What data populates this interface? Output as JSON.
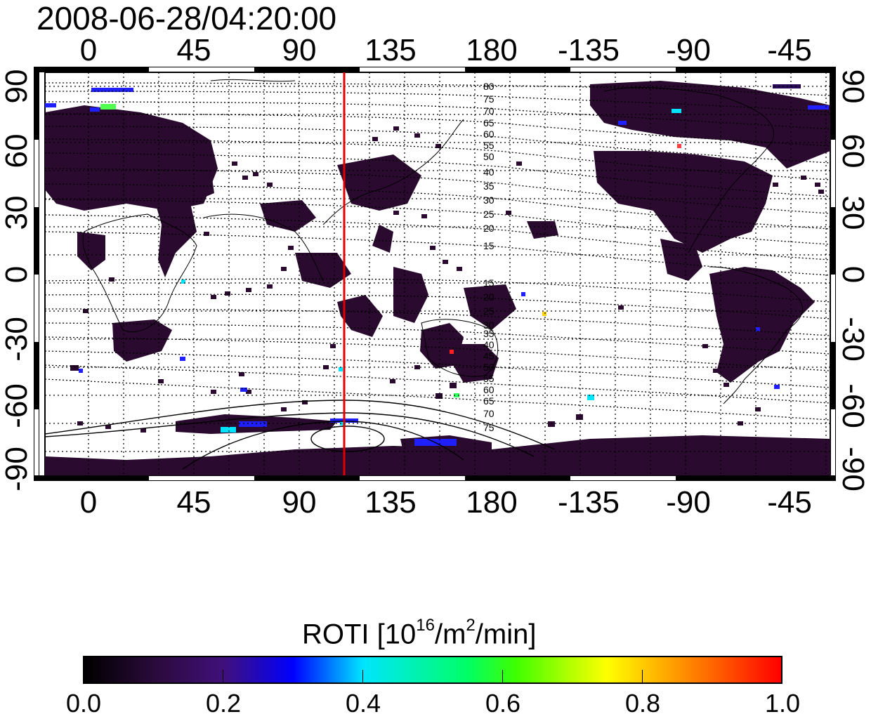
{
  "title": "2008-06-28/04:20:00",
  "map": {
    "x_axis_top_ticks": [
      "0",
      "45",
      "90",
      "135",
      "180",
      "-135",
      "-90",
      "-45"
    ],
    "x_axis_bottom_ticks": [
      "0",
      "45",
      "90",
      "135",
      "180",
      "-135",
      "-90",
      "-45"
    ],
    "y_axis_left_ticks": [
      "90",
      "60",
      "30",
      "0",
      "-30",
      "-60",
      "-90"
    ],
    "y_axis_right_ticks": [
      "90",
      "60",
      "30",
      "0",
      "-30",
      "-60",
      "-90"
    ],
    "contour_labels_north": [
      "80",
      "75",
      "70",
      "65",
      "60",
      "55",
      "50",
      "40",
      "35",
      "30",
      "25",
      "20",
      "15"
    ],
    "contour_labels_south": [
      "15",
      "20",
      "25",
      "30",
      "35",
      "40",
      "45",
      "50",
      "55",
      "60",
      "65",
      "70",
      "75"
    ],
    "red_line_longitude": 110
  },
  "colorbar": {
    "title_main": "ROTI  [10",
    "title_sup1": "16",
    "title_mid": "/m",
    "title_sup2": "2",
    "title_end": "/min]",
    "labels": [
      "0.0",
      "0.2",
      "0.4",
      "0.6",
      "0.8",
      "1.0"
    ],
    "colors": [
      "#000000",
      "#40107a",
      "#0000ff",
      "#00e5ff",
      "#00ff66",
      "#ffff00",
      "#ff0000"
    ]
  }
}
